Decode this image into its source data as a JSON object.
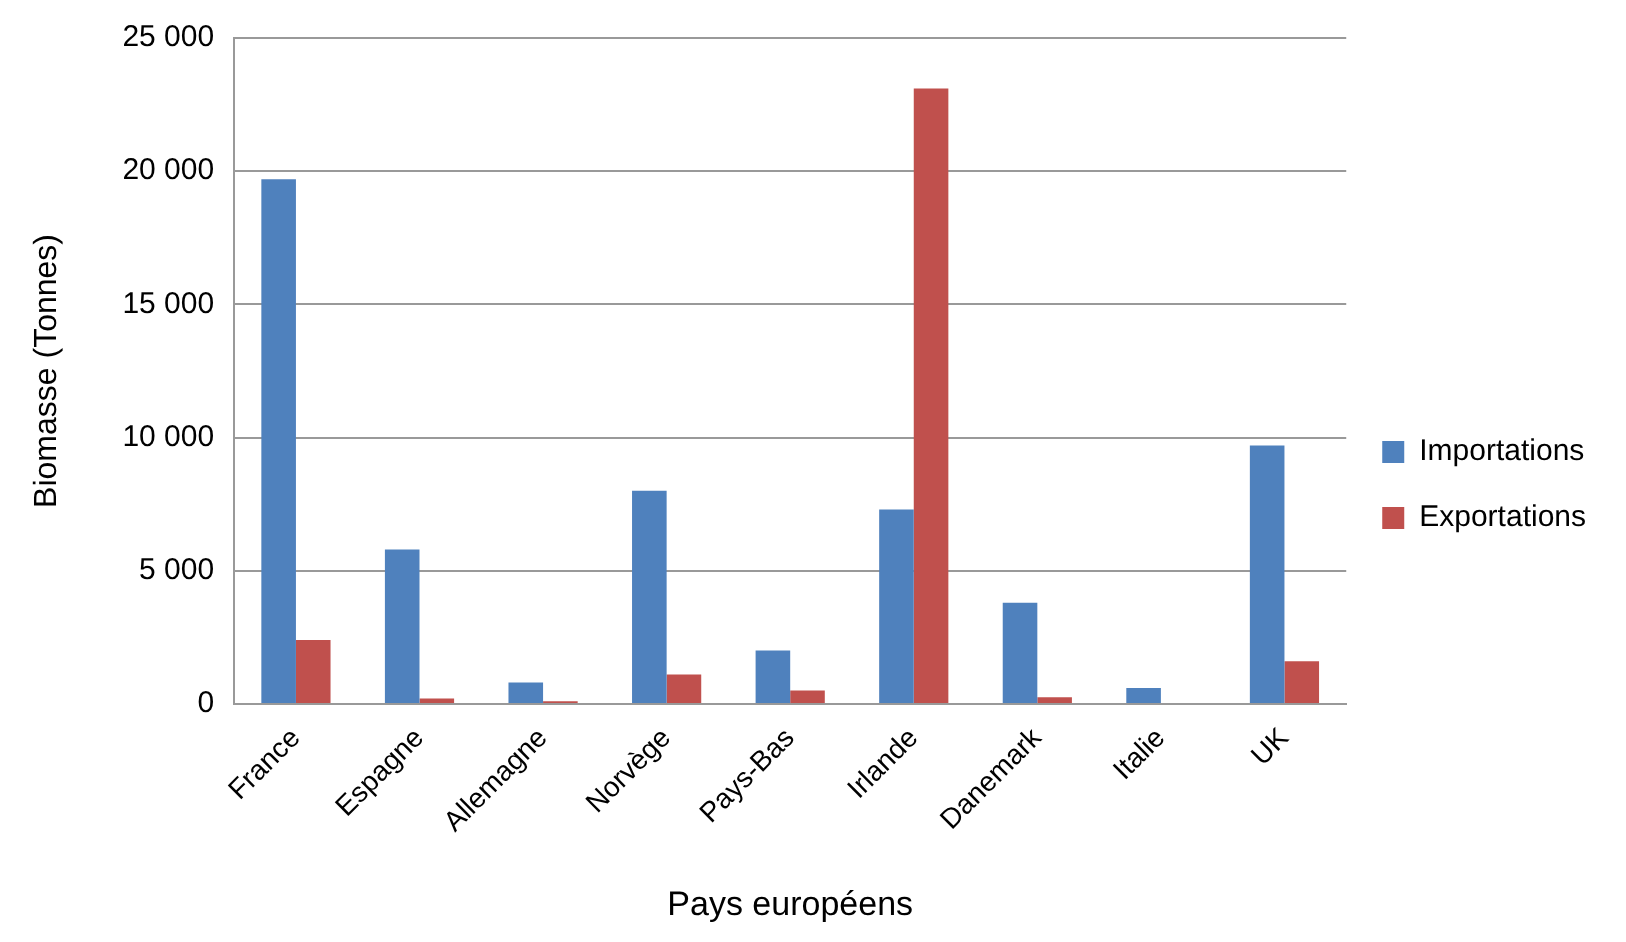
{
  "chart_data": {
    "type": "bar",
    "xlabel": "Pays européens",
    "ylabel": "Biomasse (Tonnes)",
    "categories": [
      "France",
      "Espagne",
      "Allemagne",
      "Norvège",
      "Pays-Bas",
      "Irlande",
      "Danemark",
      "Italie",
      "UK"
    ],
    "series": [
      {
        "name": "Importations",
        "color": "#4f81bd",
        "values": [
          19700,
          5800,
          800,
          8000,
          2000,
          7300,
          3800,
          600,
          9700
        ]
      },
      {
        "name": "Exportations",
        "color": "#c0504d",
        "values": [
          2400,
          200,
          100,
          1100,
          500,
          23100,
          250,
          0,
          1600
        ]
      }
    ],
    "ylim": [
      0,
      25000
    ],
    "yticks": [
      0,
      {
        "value": 5000,
        "label": "5 000"
      },
      {
        "value": 10000,
        "label": "10 000"
      },
      {
        "value": 15000,
        "label": "15 000"
      },
      {
        "value": 20000,
        "label": "20 000"
      },
      {
        "value": 25000,
        "label": "25 000"
      }
    ],
    "grid": "y",
    "legend": "right"
  }
}
